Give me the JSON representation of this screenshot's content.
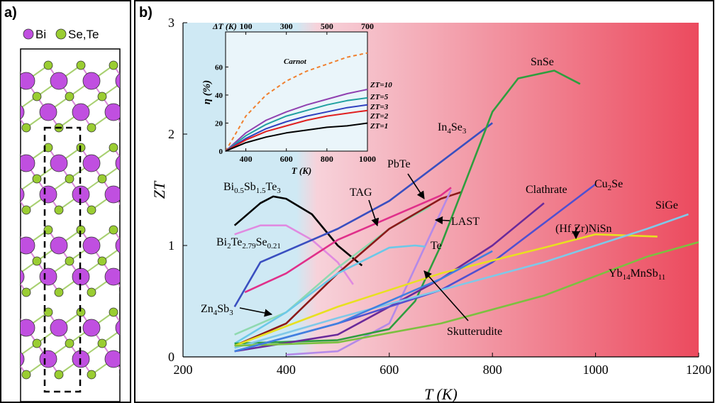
{
  "panel_a": {
    "label": "a)",
    "legend": [
      {
        "name": "Bi",
        "color": "#c04fe0"
      },
      {
        "name": "Se,Te",
        "color": "#9acd32"
      }
    ]
  },
  "chart_data": [
    {
      "type": "line",
      "panel_label": "b)",
      "x_label": "T (K)",
      "y_label": "ZT",
      "xlim": [
        200,
        1200
      ],
      "ylim": [
        0,
        3
      ],
      "xticks": [
        200,
        400,
        600,
        800,
        1000,
        1200
      ],
      "yticks": [
        0,
        1,
        2,
        3
      ],
      "series": [
        {
          "name": "Bi0.5Sb1.5Te3",
          "color": "#000000",
          "x": [
            300,
            350,
            375,
            400,
            450,
            500,
            547
          ],
          "values": [
            1.18,
            1.38,
            1.44,
            1.42,
            1.28,
            1.0,
            0.82
          ]
        },
        {
          "name": "Bi2Te2.79Se0.21",
          "color": "#e08ae0",
          "x": [
            300,
            350,
            400,
            450,
            500,
            530
          ],
          "values": [
            1.1,
            1.18,
            1.18,
            1.05,
            0.85,
            0.65
          ]
        },
        {
          "name": "Zn4Sb3",
          "color": "#8fd9b0",
          "x": [
            300,
            400,
            500,
            600,
            680
          ],
          "values": [
            0.2,
            0.4,
            0.8,
            1.15,
            1.35
          ]
        },
        {
          "name": "In4Se3",
          "color": "#3a4fc0",
          "x": [
            300,
            350,
            400,
            500,
            600,
            700,
            800
          ],
          "values": [
            0.45,
            0.85,
            0.95,
            1.15,
            1.4,
            1.75,
            2.1
          ]
        },
        {
          "name": "TAG",
          "color": "#e0308a",
          "x": [
            320,
            400,
            500,
            600,
            700,
            720
          ],
          "values": [
            0.58,
            0.75,
            1.05,
            1.25,
            1.45,
            1.52
          ]
        },
        {
          "name": "PbTe",
          "color": "#8b1a1a",
          "x": [
            300,
            400,
            500,
            600,
            700,
            740
          ],
          "values": [
            0.1,
            0.3,
            0.75,
            1.15,
            1.42,
            1.48
          ]
        },
        {
          "name": "LAST",
          "color": "#b48ae8",
          "x": [
            400,
            500,
            600,
            650,
            700,
            720
          ],
          "values": [
            0.02,
            0.05,
            0.3,
            0.8,
            1.3,
            1.5
          ]
        },
        {
          "name": "Te",
          "color": "#6cc8e8",
          "x": [
            300,
            400,
            500,
            600,
            650,
            670
          ],
          "values": [
            0.12,
            0.4,
            0.75,
            0.98,
            1.0,
            0.99
          ]
        },
        {
          "name": "SnSe",
          "color": "#2e9e3e",
          "x": [
            300,
            500,
            600,
            650,
            700,
            750,
            800,
            850,
            920,
            970
          ],
          "values": [
            0.12,
            0.15,
            0.25,
            0.5,
            1.0,
            1.6,
            2.2,
            2.5,
            2.57,
            2.45
          ]
        },
        {
          "name": "Clathrate",
          "color": "#6a2a9a",
          "x": [
            300,
            500,
            700,
            800,
            900
          ],
          "values": [
            0.05,
            0.2,
            0.7,
            1.0,
            1.38
          ]
        },
        {
          "name": "Cu2Se",
          "color": "#5050d0",
          "x": [
            300,
            500,
            700,
            800,
            900,
            1000
          ],
          "values": [
            0.05,
            0.3,
            0.6,
            0.85,
            1.2,
            1.55
          ]
        },
        {
          "name": "(Hf,Zr)NiSn",
          "color": "#e8e020",
          "x": [
            300,
            500,
            700,
            900,
            1000,
            1120
          ],
          "values": [
            0.1,
            0.45,
            0.75,
            0.98,
            1.1,
            1.08
          ]
        },
        {
          "name": "SiGe",
          "color": "#7fc8e8",
          "x": [
            300,
            500,
            700,
            900,
            1100,
            1180
          ],
          "values": [
            0.08,
            0.35,
            0.6,
            0.85,
            1.15,
            1.28
          ]
        },
        {
          "name": "Yb14MnSb11",
          "color": "#7cc040",
          "x": [
            300,
            500,
            700,
            900,
            1100,
            1200
          ],
          "values": [
            0.1,
            0.13,
            0.3,
            0.55,
            0.9,
            1.03
          ]
        },
        {
          "name": "Skutterudite",
          "color": "#4080e0",
          "x": [
            300,
            500,
            700,
            800
          ],
          "values": [
            0.05,
            0.3,
            0.7,
            0.95
          ]
        }
      ]
    },
    {
      "type": "line",
      "x_label": "T (K)",
      "y_label": "η (%)",
      "x2_label": "ΔT (K)",
      "xlim": [
        300,
        1000
      ],
      "ylim": [
        0,
        85
      ],
      "xticks": [
        400,
        600,
        800,
        1000
      ],
      "yticks": [
        0,
        20,
        40,
        60
      ],
      "x2lim": [
        0,
        700
      ],
      "x2ticks": [
        100,
        300,
        500,
        700
      ],
      "series": [
        {
          "name": "Carnot",
          "color": "#f08030",
          "dashed": true,
          "x": [
            300,
            400,
            500,
            600,
            700,
            800,
            900,
            1000
          ],
          "values": [
            0,
            25,
            40,
            50,
            57,
            62,
            67,
            70
          ]
        },
        {
          "name": "ZT=10",
          "color": "#9040b0",
          "x": [
            300,
            400,
            500,
            600,
            700,
            800,
            900,
            1000
          ],
          "values": [
            0,
            13,
            22,
            28,
            33,
            37,
            41,
            44
          ]
        },
        {
          "name": "ZT=5",
          "color": "#20a0a0",
          "x": [
            300,
            400,
            500,
            600,
            700,
            800,
            900,
            1000
          ],
          "values": [
            0,
            11,
            19,
            25,
            29,
            33,
            36,
            38
          ]
        },
        {
          "name": "ZT=3",
          "color": "#3040c0",
          "x": [
            300,
            400,
            500,
            600,
            700,
            800,
            900,
            1000
          ],
          "values": [
            0,
            9,
            16,
            21,
            25,
            28,
            31,
            33
          ]
        },
        {
          "name": "ZT=2",
          "color": "#e02020",
          "x": [
            300,
            400,
            500,
            600,
            700,
            800,
            900,
            1000
          ],
          "values": [
            0,
            8,
            14,
            18,
            22,
            25,
            27,
            29
          ]
        },
        {
          "name": "ZT=1",
          "color": "#000000",
          "x": [
            300,
            400,
            500,
            600,
            700,
            800,
            900,
            1000
          ],
          "values": [
            0,
            6,
            10,
            13,
            15,
            17,
            18,
            20
          ]
        }
      ]
    }
  ]
}
